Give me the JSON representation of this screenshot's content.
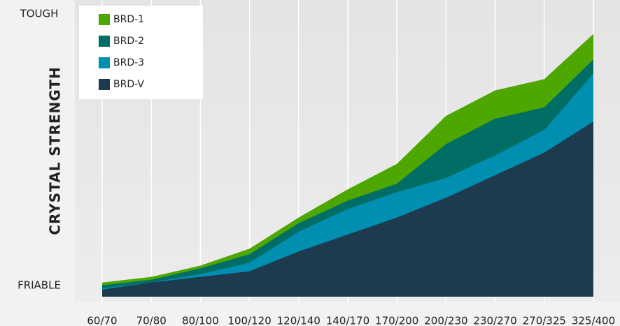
{
  "chart_data": {
    "type": "area",
    "ylabel": "CRYSTAL STRENGTH",
    "categories": [
      "60/70",
      "70/80",
      "80/100",
      "100/120",
      "120/140",
      "140/170",
      "170/200",
      "200/230",
      "230/270",
      "270/325",
      "325/400"
    ],
    "ylim": [
      0,
      105
    ],
    "yticks": [
      {
        "value": 100,
        "label": "TOUGH"
      },
      {
        "value": 4,
        "label": "FRIABLE"
      }
    ],
    "grid": true,
    "legend": "upper left",
    "series": [
      {
        "name": "BRD-1",
        "color": "#4ea600",
        "values": [
          5,
          7,
          11,
          17,
          28,
          38,
          47,
          64,
          73,
          77,
          93
        ]
      },
      {
        "name": "BRD-2",
        "color": "#006e64",
        "values": [
          4,
          6,
          10,
          15,
          26,
          34,
          40,
          54,
          63,
          67,
          84
        ]
      },
      {
        "name": "BRD-3",
        "color": "#008fb0",
        "values": [
          3,
          5,
          8,
          12,
          23,
          31,
          37,
          42,
          50,
          59,
          79
        ]
      },
      {
        "name": "BRD-V",
        "color": "#1e3a4e",
        "values": [
          2.5,
          5,
          7,
          9,
          16,
          22,
          28,
          35,
          43,
          51,
          62
        ]
      }
    ]
  }
}
